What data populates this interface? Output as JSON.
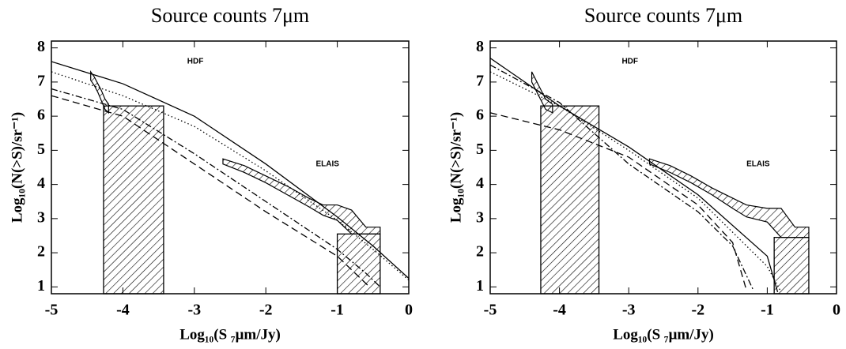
{
  "chart_data": [
    {
      "type": "line",
      "title": "Source counts 7μm",
      "xlabel": "Log₁₀(S ₇μm/Jy)",
      "ylabel": "Log₁₀(N(>S)/sr⁻¹)",
      "annotations": [
        "HDF",
        "ELAIS"
      ],
      "xlim": [
        -5,
        0
      ],
      "ylim": [
        0.8,
        8.2
      ],
      "xticks": [
        -5,
        -4,
        -3,
        -2,
        -1,
        0
      ],
      "yticks": [
        1,
        2,
        3,
        4,
        5,
        6,
        7,
        8
      ],
      "series": [
        {
          "style": "solid",
          "color": "#000",
          "x": [
            -5,
            -4,
            -3,
            -2,
            -1,
            -0.5,
            0
          ],
          "values": [
            7.6,
            6.95,
            6.0,
            4.6,
            3.05,
            2.2,
            1.25
          ]
        },
        {
          "style": "dotted",
          "color": "#000",
          "x": [
            -5,
            -4,
            -3,
            -2,
            -1,
            -0.5,
            0
          ],
          "values": [
            7.3,
            6.6,
            5.7,
            4.4,
            2.95,
            2.1,
            1.2
          ]
        },
        {
          "style": "dashdot",
          "color": "#000",
          "x": [
            -5,
            -4,
            -3,
            -2,
            -1,
            -0.6,
            -0.4
          ],
          "values": [
            6.8,
            6.2,
            4.9,
            3.5,
            2.1,
            1.4,
            1.0
          ]
        },
        {
          "style": "dashed",
          "color": "#000",
          "x": [
            -5,
            -4,
            -3,
            -2,
            -1,
            -0.7,
            -0.55
          ],
          "values": [
            6.6,
            6.0,
            4.6,
            3.2,
            1.9,
            1.3,
            1.0
          ]
        }
      ],
      "hatched_bands": [
        {
          "x": [
            -4.45,
            -4.4,
            -4.35,
            -4.3,
            -4.25,
            -4.2
          ],
          "upper": [
            7.3,
            7.15,
            6.95,
            6.75,
            6.5,
            6.35
          ],
          "lower": [
            7.05,
            6.9,
            6.7,
            6.45,
            6.2,
            6.1
          ]
        },
        {
          "x": [
            -2.6,
            -2.3,
            -2.0,
            -1.7,
            -1.4,
            -1.2,
            -1.0,
            -0.8,
            -0.6,
            -0.4
          ],
          "upper": [
            4.75,
            4.55,
            4.25,
            3.95,
            3.6,
            3.4,
            3.4,
            3.25,
            2.75,
            2.75
          ],
          "lower": [
            4.6,
            4.35,
            4.05,
            3.7,
            3.35,
            3.1,
            2.95,
            2.55,
            2.55,
            2.55
          ]
        }
      ],
      "hatched_bars": [
        {
          "x0": -4.27,
          "x1": -3.43,
          "top": 6.3
        },
        {
          "x0": -1.0,
          "x1": -0.4,
          "top": 2.55
        }
      ]
    },
    {
      "type": "line",
      "title": "Source counts 7μm",
      "xlabel": "Log₁₀(S ₇μm/Jy)",
      "ylabel": "Log₁₀(N(>S)/sr⁻¹)",
      "annotations": [
        "HDF",
        "ELAIS"
      ],
      "xlim": [
        -5,
        0
      ],
      "ylim": [
        0.8,
        8.2
      ],
      "xticks": [
        -5,
        -4,
        -3,
        -2,
        -1,
        0
      ],
      "yticks": [
        1,
        2,
        3,
        4,
        5,
        6,
        7,
        8
      ],
      "series": [
        {
          "style": "solid",
          "color": "#000",
          "x": [
            -5,
            -4,
            -3,
            -2,
            -1,
            -0.85
          ],
          "values": [
            7.7,
            6.3,
            5.1,
            3.7,
            1.9,
            0.85
          ]
        },
        {
          "style": "dotted",
          "color": "#000",
          "x": [
            -5,
            -4,
            -3,
            -2,
            -1,
            -0.8
          ],
          "values": [
            7.3,
            6.3,
            5.0,
            3.6,
            1.6,
            0.85
          ]
        },
        {
          "style": "dashdot",
          "color": "#000",
          "x": [
            -5,
            -4,
            -3,
            -2,
            -1.5,
            -1.2
          ],
          "values": [
            7.5,
            6.4,
            4.6,
            3.2,
            2.2,
            0.9
          ]
        },
        {
          "style": "dashed",
          "color": "#000",
          "x": [
            -5,
            -4,
            -3,
            -2,
            -1.5,
            -1.3
          ],
          "values": [
            6.1,
            5.6,
            4.8,
            3.4,
            2.3,
            0.9
          ]
        }
      ],
      "hatched_bands": [
        {
          "x": [
            -4.4,
            -4.35,
            -4.3,
            -4.25,
            -4.2,
            -4.1
          ],
          "upper": [
            7.3,
            7.1,
            6.9,
            6.7,
            6.5,
            6.35
          ],
          "lower": [
            7.0,
            6.8,
            6.6,
            6.4,
            6.2,
            6.1
          ]
        },
        {
          "x": [
            -2.7,
            -2.4,
            -2.1,
            -1.8,
            -1.5,
            -1.3,
            -1.0,
            -0.8,
            -0.6,
            -0.4
          ],
          "upper": [
            4.75,
            4.55,
            4.25,
            3.9,
            3.6,
            3.4,
            3.3,
            3.3,
            2.75,
            2.75
          ],
          "lower": [
            4.6,
            4.35,
            4.05,
            3.7,
            3.3,
            3.05,
            2.9,
            2.45,
            2.45,
            2.45
          ]
        }
      ],
      "hatched_bars": [
        {
          "x0": -4.27,
          "x1": -3.43,
          "top": 6.3
        },
        {
          "x0": -0.9,
          "x1": -0.4,
          "top": 2.45
        }
      ]
    }
  ]
}
